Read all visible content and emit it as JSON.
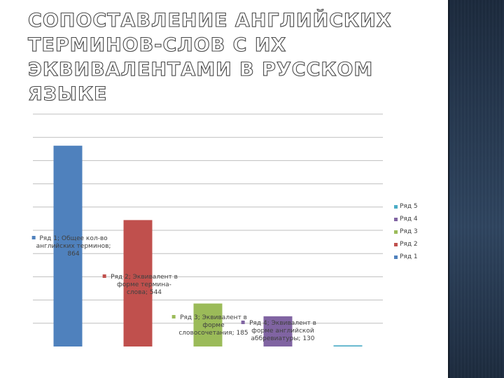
{
  "slide": {
    "title": "СОПОСТАВЛЕНИЕ АНГЛИЙСКИХ ТЕРМИНОВ-СЛОВ С ИХ ЭКВИВАЛЕНТАМИ В РУССКОМ ЯЗЫКЕ"
  },
  "chart_data": {
    "type": "bar",
    "title": "",
    "xlabel": "",
    "ylabel": "",
    "ylim": [
      0,
      1000
    ],
    "grid": true,
    "legend_position": "right",
    "series": [
      {
        "name": "Ряд 1",
        "values": [
          864
        ],
        "color": "#4f81bd",
        "label_lines": [
          "Ряд 1; Общее кол-во",
          "английских терминов;",
          "864"
        ]
      },
      {
        "name": "Ряд 2",
        "values": [
          544
        ],
        "color": "#c0504d",
        "label_lines": [
          "Ряд 2; Эквивалент в",
          "форме термина-",
          "слова; 544"
        ]
      },
      {
        "name": "Ряд 3",
        "values": [
          185
        ],
        "color": "#9bbb59",
        "label_lines": [
          "Ряд 3; Эквивалент в",
          "форме",
          "словосочетания; 185"
        ]
      },
      {
        "name": "Ряд 4",
        "values": [
          130
        ],
        "color": "#8064a2",
        "label_lines": [
          "Ряд 4; Эквивалент в",
          "форме английской",
          "аббревиатуры; 130"
        ]
      },
      {
        "name": "Ряд 5",
        "values": [
          5
        ],
        "color": "#4bacc6",
        "label_lines": []
      }
    ],
    "legend": [
      "Ряд 5",
      "Ряд 4",
      "Ряд 3",
      "Ряд 2",
      "Ряд 1"
    ]
  }
}
